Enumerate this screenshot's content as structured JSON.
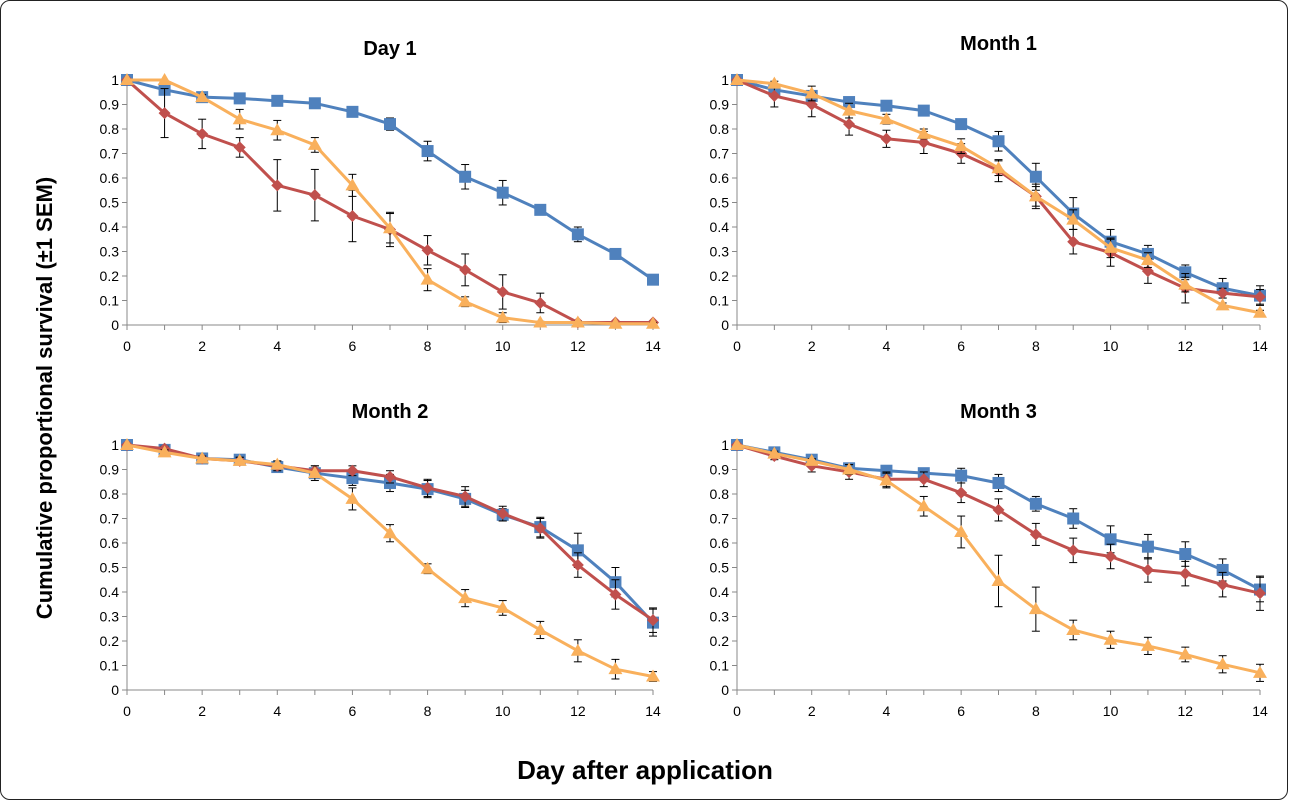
{
  "figure": {
    "ylabel": "Cumulative proportional survival (±1 SEM)",
    "xlabel": "Day after application"
  },
  "colors": {
    "blue": "#4f81bd",
    "red": "#c0504d",
    "orange": "#f9b05c"
  },
  "chart_data": [
    {
      "type": "line",
      "title": "Day 1",
      "xlabel": "",
      "ylabel": "",
      "xlim": [
        0,
        14
      ],
      "ylim": [
        0,
        1
      ],
      "x_ticks": [
        0,
        2,
        4,
        6,
        8,
        10,
        12,
        14
      ],
      "y_ticks": [
        0,
        0.1,
        0.2,
        0.3,
        0.4,
        0.5,
        0.6,
        0.7,
        0.8,
        0.9,
        1
      ],
      "y_tick_labels": [
        "0",
        "0.1",
        "0.2",
        "0.3",
        "0.4",
        "0.5",
        "0.6",
        "0.7",
        "0.8",
        "0.9",
        "1"
      ],
      "grid": false,
      "x": [
        0,
        1,
        2,
        3,
        4,
        5,
        6,
        7,
        8,
        9,
        10,
        11,
        12,
        13,
        14
      ],
      "series": [
        {
          "color": "#4f81bd",
          "marker": "square",
          "values": [
            1,
            0.96,
            0.93,
            0.925,
            0.915,
            0.905,
            0.87,
            0.82,
            0.71,
            0.605,
            0.54,
            0.47,
            0.37,
            0.29,
            0.185
          ],
          "errors": [
            0,
            0.02,
            0.015,
            0.02,
            0.02,
            0.02,
            0.02,
            0.025,
            0.04,
            0.05,
            0.05,
            0.02,
            0.03,
            0.02,
            0.01
          ]
        },
        {
          "color": "#c0504d",
          "marker": "diamond",
          "values": [
            1,
            0.865,
            0.78,
            0.725,
            0.57,
            0.53,
            0.445,
            0.39,
            0.305,
            0.225,
            0.135,
            0.09,
            0.01,
            0.01,
            0.01
          ],
          "errors": [
            0,
            0.1,
            0.06,
            0.04,
            0.105,
            0.105,
            0.105,
            0.07,
            0.06,
            0.065,
            0.07,
            0.04,
            0.005,
            0.005,
            0.005
          ]
        },
        {
          "color": "#f9b05c",
          "marker": "triangle",
          "values": [
            1,
            1,
            0.93,
            0.84,
            0.795,
            0.735,
            0.57,
            0.395,
            0.185,
            0.095,
            0.03,
            0.01,
            0.01,
            0.005,
            0.005
          ],
          "errors": [
            0,
            0,
            0.01,
            0.04,
            0.04,
            0.03,
            0.045,
            0.06,
            0.045,
            0.02,
            0.02,
            0.005,
            0.005,
            0.005,
            0.005
          ]
        }
      ]
    },
    {
      "type": "line",
      "title": "Month 1",
      "xlabel": "",
      "ylabel": "",
      "xlim": [
        0,
        14
      ],
      "ylim": [
        0,
        1
      ],
      "x_ticks": [
        0,
        2,
        4,
        6,
        8,
        10,
        12,
        14
      ],
      "y_ticks": [
        0,
        0.1,
        0.2,
        0.3,
        0.4,
        0.5,
        0.6,
        0.7,
        0.8,
        0.9,
        1
      ],
      "y_tick_labels": [
        "0",
        "0.1",
        "0.2",
        "0.3",
        "0.4",
        "0.5",
        "0.6",
        "0.7",
        "0.8",
        "0.9",
        "1"
      ],
      "grid": false,
      "x": [
        0,
        1,
        2,
        3,
        4,
        5,
        6,
        7,
        8,
        9,
        10,
        11,
        12,
        13,
        14
      ],
      "series": [
        {
          "color": "#4f81bd",
          "marker": "square",
          "values": [
            1,
            0.96,
            0.935,
            0.91,
            0.895,
            0.875,
            0.82,
            0.75,
            0.605,
            0.455,
            0.34,
            0.29,
            0.215,
            0.15,
            0.12
          ],
          "errors": [
            0,
            0.02,
            0.02,
            0.015,
            0.01,
            0.01,
            0.015,
            0.04,
            0.055,
            0.065,
            0.05,
            0.035,
            0.03,
            0.04,
            0.04
          ]
        },
        {
          "color": "#c0504d",
          "marker": "diamond",
          "values": [
            1,
            0.935,
            0.9,
            0.82,
            0.76,
            0.745,
            0.7,
            0.63,
            0.525,
            0.34,
            0.295,
            0.22,
            0.15,
            0.13,
            0.115
          ],
          "errors": [
            0,
            0.045,
            0.05,
            0.045,
            0.035,
            0.045,
            0.04,
            0.045,
            0.05,
            0.05,
            0.055,
            0.05,
            0.06,
            0.02,
            0.03
          ]
        },
        {
          "color": "#f9b05c",
          "marker": "triangle",
          "values": [
            1,
            0.985,
            0.945,
            0.875,
            0.84,
            0.78,
            0.73,
            0.64,
            0.525,
            0.43,
            0.315,
            0.265,
            0.165,
            0.08,
            0.05
          ],
          "errors": [
            0,
            0.01,
            0.03,
            0.03,
            0.02,
            0.02,
            0.03,
            0.03,
            0.04,
            0.04,
            0.04,
            0.03,
            0.03,
            0.01,
            0.01
          ]
        }
      ]
    },
    {
      "type": "line",
      "title": "Month 2",
      "xlabel": "",
      "ylabel": "",
      "xlim": [
        0,
        14
      ],
      "ylim": [
        0,
        1
      ],
      "x_ticks": [
        0,
        2,
        4,
        6,
        8,
        10,
        12,
        14
      ],
      "y_ticks": [
        0,
        0.1,
        0.2,
        0.3,
        0.4,
        0.5,
        0.6,
        0.7,
        0.8,
        0.9,
        1
      ],
      "y_tick_labels": [
        "0",
        "0.1",
        "0.2",
        "0.3",
        "0.4",
        "0.5",
        "0.6",
        "0.7",
        "0.8",
        "0.9",
        "1"
      ],
      "grid": false,
      "x": [
        0,
        1,
        2,
        3,
        4,
        5,
        6,
        7,
        8,
        9,
        10,
        11,
        12,
        13,
        14
      ],
      "series": [
        {
          "color": "#4f81bd",
          "marker": "square",
          "values": [
            1,
            0.98,
            0.945,
            0.94,
            0.91,
            0.885,
            0.865,
            0.845,
            0.82,
            0.78,
            0.715,
            0.665,
            0.57,
            0.44,
            0.275
          ],
          "errors": [
            0,
            0.01,
            0.01,
            0.015,
            0.015,
            0.02,
            0.03,
            0.035,
            0.035,
            0.035,
            0.025,
            0.04,
            0.07,
            0.06,
            0.055
          ]
        },
        {
          "color": "#c0504d",
          "marker": "diamond",
          "values": [
            1,
            0.985,
            0.945,
            0.935,
            0.915,
            0.895,
            0.895,
            0.87,
            0.825,
            0.79,
            0.72,
            0.66,
            0.51,
            0.39,
            0.285
          ],
          "errors": [
            0,
            0.01,
            0.01,
            0.015,
            0.02,
            0.02,
            0.02,
            0.025,
            0.035,
            0.04,
            0.03,
            0.04,
            0.05,
            0.06,
            0.05
          ]
        },
        {
          "color": "#f9b05c",
          "marker": "triangle",
          "values": [
            1,
            0.97,
            0.945,
            0.935,
            0.92,
            0.885,
            0.78,
            0.64,
            0.495,
            0.375,
            0.335,
            0.245,
            0.16,
            0.085,
            0.055
          ],
          "errors": [
            0,
            0.01,
            0.01,
            0.015,
            0.015,
            0.03,
            0.045,
            0.035,
            0.02,
            0.035,
            0.03,
            0.035,
            0.045,
            0.04,
            0.02
          ]
        }
      ]
    },
    {
      "type": "line",
      "title": "Month 3",
      "xlabel": "",
      "ylabel": "",
      "xlim": [
        0,
        14
      ],
      "ylim": [
        0,
        1
      ],
      "x_ticks": [
        0,
        2,
        4,
        6,
        8,
        10,
        12,
        14
      ],
      "y_ticks": [
        0,
        0.1,
        0.2,
        0.3,
        0.4,
        0.5,
        0.6,
        0.7,
        0.8,
        0.9,
        1
      ],
      "y_tick_labels": [
        "0",
        "0.1",
        "0.2",
        "0.3",
        "0.4",
        "0.5",
        "0.6",
        "0.7",
        "0.8",
        "0.9",
        "1"
      ],
      "grid": false,
      "x": [
        0,
        1,
        2,
        3,
        4,
        5,
        6,
        7,
        8,
        9,
        10,
        11,
        12,
        13,
        14
      ],
      "series": [
        {
          "color": "#4f81bd",
          "marker": "square",
          "values": [
            1,
            0.97,
            0.94,
            0.905,
            0.895,
            0.885,
            0.875,
            0.845,
            0.76,
            0.7,
            0.615,
            0.585,
            0.555,
            0.49,
            0.41
          ],
          "errors": [
            0,
            0.01,
            0.02,
            0.02,
            0.02,
            0.02,
            0.03,
            0.035,
            0.03,
            0.04,
            0.055,
            0.05,
            0.05,
            0.045,
            0.05
          ]
        },
        {
          "color": "#c0504d",
          "marker": "diamond",
          "values": [
            1,
            0.955,
            0.915,
            0.89,
            0.86,
            0.86,
            0.805,
            0.735,
            0.635,
            0.57,
            0.545,
            0.49,
            0.475,
            0.43,
            0.395
          ],
          "errors": [
            0,
            0.015,
            0.025,
            0.03,
            0.03,
            0.03,
            0.04,
            0.045,
            0.045,
            0.05,
            0.05,
            0.05,
            0.05,
            0.05,
            0.07
          ]
        },
        {
          "color": "#f9b05c",
          "marker": "triangle",
          "values": [
            1,
            0.965,
            0.935,
            0.9,
            0.855,
            0.75,
            0.645,
            0.445,
            0.33,
            0.245,
            0.205,
            0.18,
            0.145,
            0.105,
            0.07
          ],
          "errors": [
            0,
            0.01,
            0.01,
            0.02,
            0.03,
            0.04,
            0.065,
            0.105,
            0.09,
            0.04,
            0.035,
            0.035,
            0.03,
            0.035,
            0.035
          ]
        }
      ]
    }
  ]
}
